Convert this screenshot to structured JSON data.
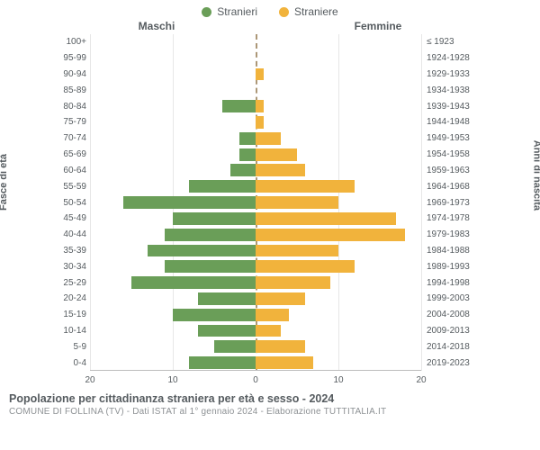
{
  "legend": {
    "male": {
      "label": "Stranieri",
      "color": "#6a9e58"
    },
    "female": {
      "label": "Straniere",
      "color": "#f1b33c"
    }
  },
  "headers": {
    "male": "Maschi",
    "female": "Femmine"
  },
  "y_axis_left": "Fasce di età",
  "y_axis_right": "Anni di nascita",
  "x_axis": {
    "max": 20,
    "ticks": [
      20,
      10,
      0,
      10,
      20
    ]
  },
  "grid_color": "#e7e7e7",
  "center_line_color": "#806030",
  "bg_color": "#ffffff",
  "chart_type": "pyramid",
  "rows": [
    {
      "age": "100+",
      "birth": "≤ 1923",
      "m": 0,
      "f": 0
    },
    {
      "age": "95-99",
      "birth": "1924-1928",
      "m": 0,
      "f": 0
    },
    {
      "age": "90-94",
      "birth": "1929-1933",
      "m": 0,
      "f": 1
    },
    {
      "age": "85-89",
      "birth": "1934-1938",
      "m": 0,
      "f": 0
    },
    {
      "age": "80-84",
      "birth": "1939-1943",
      "m": 4,
      "f": 1
    },
    {
      "age": "75-79",
      "birth": "1944-1948",
      "m": 0,
      "f": 1
    },
    {
      "age": "70-74",
      "birth": "1949-1953",
      "m": 2,
      "f": 3
    },
    {
      "age": "65-69",
      "birth": "1954-1958",
      "m": 2,
      "f": 5
    },
    {
      "age": "60-64",
      "birth": "1959-1963",
      "m": 3,
      "f": 6
    },
    {
      "age": "55-59",
      "birth": "1964-1968",
      "m": 8,
      "f": 12
    },
    {
      "age": "50-54",
      "birth": "1969-1973",
      "m": 16,
      "f": 10
    },
    {
      "age": "45-49",
      "birth": "1974-1978",
      "m": 10,
      "f": 17
    },
    {
      "age": "40-44",
      "birth": "1979-1983",
      "m": 11,
      "f": 18
    },
    {
      "age": "35-39",
      "birth": "1984-1988",
      "m": 13,
      "f": 10
    },
    {
      "age": "30-34",
      "birth": "1989-1993",
      "m": 11,
      "f": 12
    },
    {
      "age": "25-29",
      "birth": "1994-1998",
      "m": 15,
      "f": 9
    },
    {
      "age": "20-24",
      "birth": "1999-2003",
      "m": 7,
      "f": 6
    },
    {
      "age": "15-19",
      "birth": "2004-2008",
      "m": 10,
      "f": 4
    },
    {
      "age": "10-14",
      "birth": "2009-2013",
      "m": 7,
      "f": 3
    },
    {
      "age": "5-9",
      "birth": "2014-2018",
      "m": 5,
      "f": 6
    },
    {
      "age": "0-4",
      "birth": "2019-2023",
      "m": 8,
      "f": 7
    }
  ],
  "footer": {
    "title": "Popolazione per cittadinanza straniera per età e sesso - 2024",
    "subtitle": "COMUNE DI FOLLINA (TV) - Dati ISTAT al 1° gennaio 2024 - Elaborazione TUTTITALIA.IT"
  }
}
